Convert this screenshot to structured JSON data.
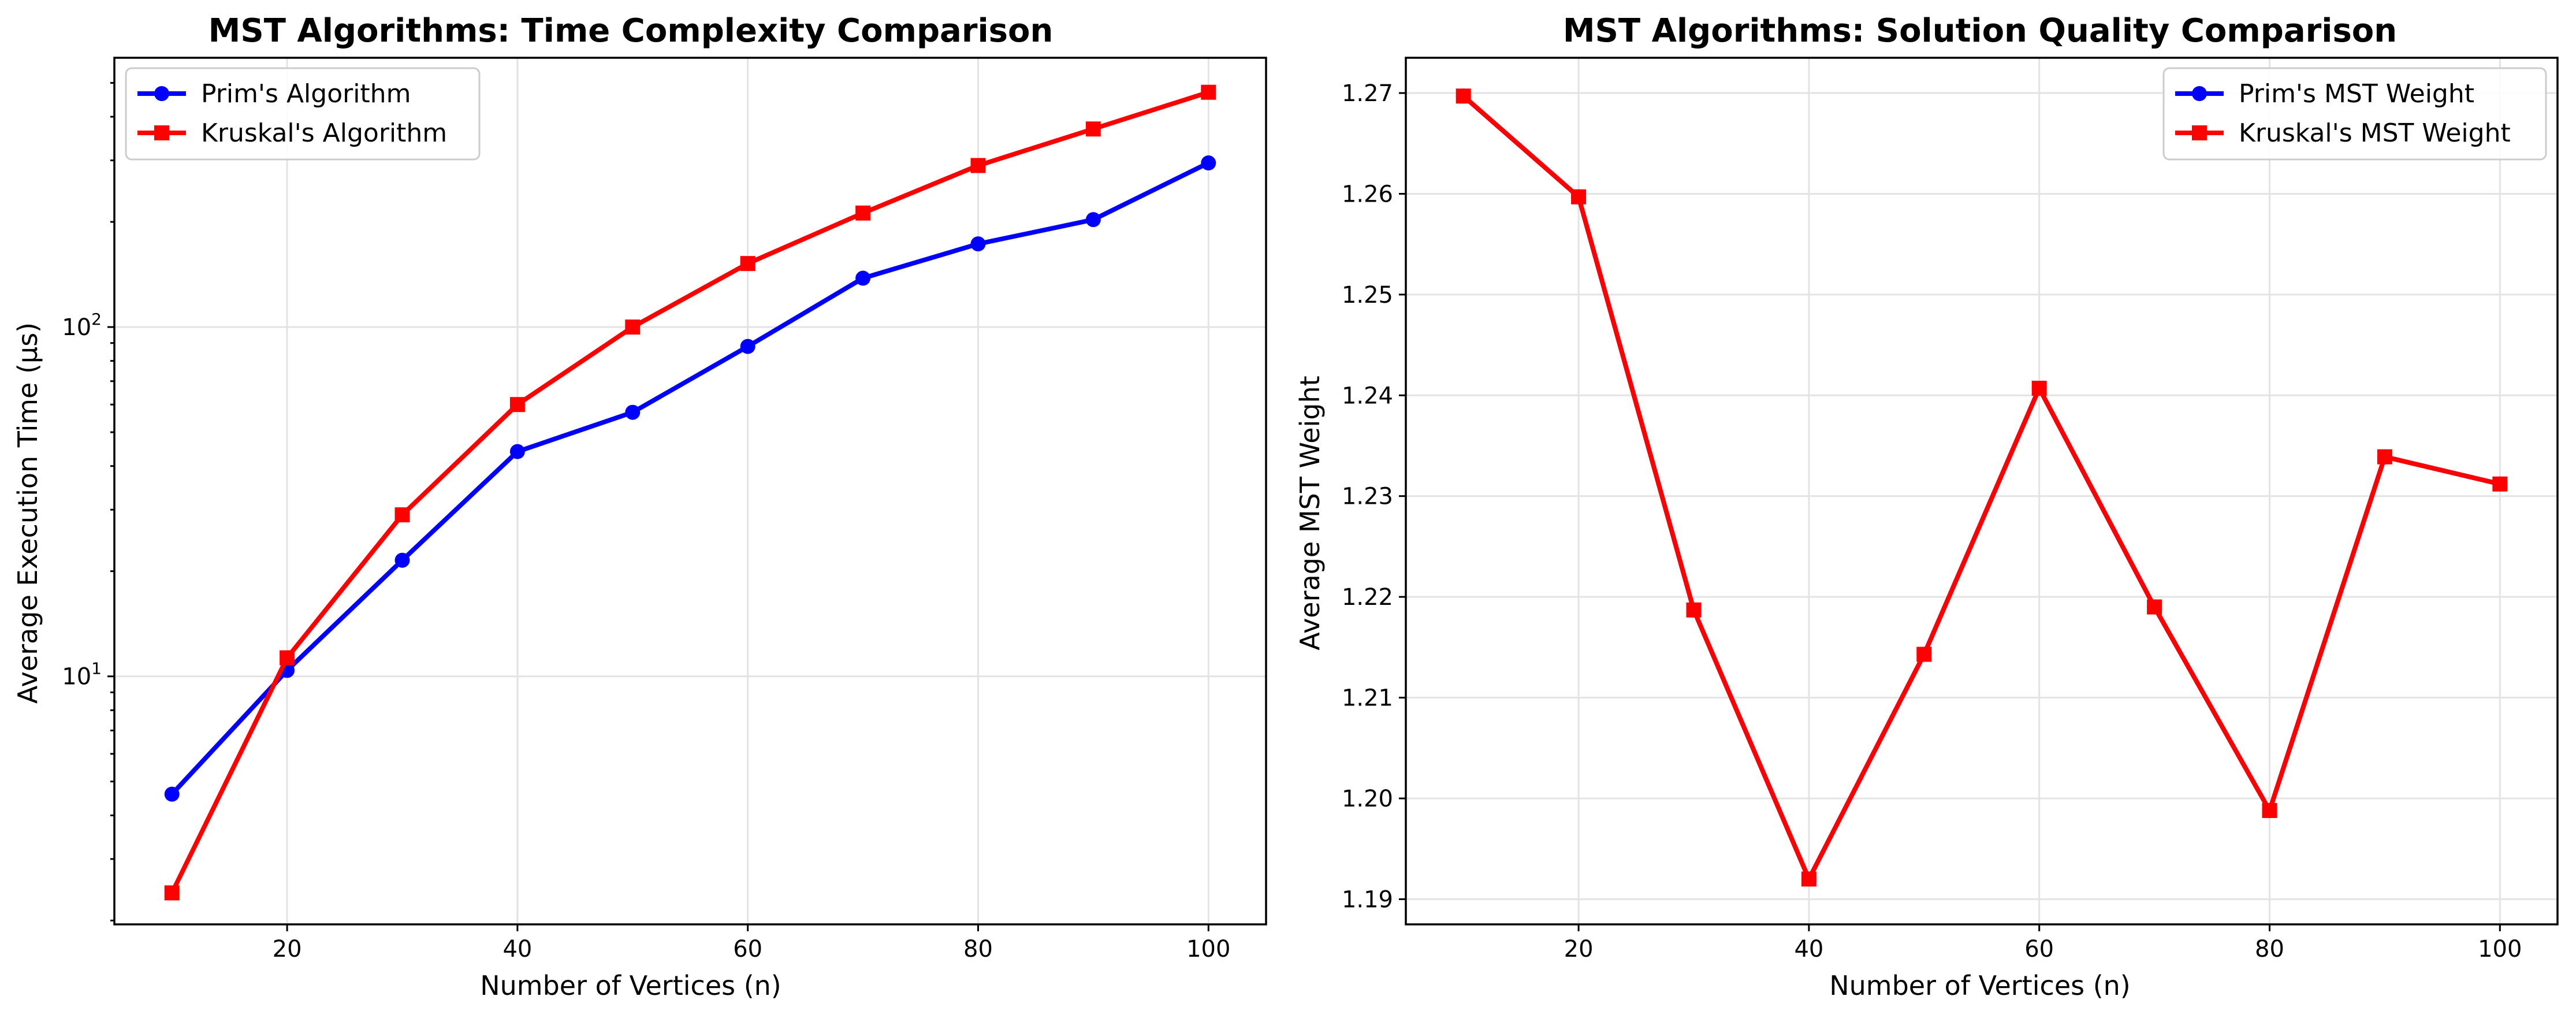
{
  "chart_data": [
    {
      "type": "line",
      "title": "MST Algorithms: Time Complexity Comparison",
      "xlabel": "Number of Vertices (n)",
      "ylabel": "Average Execution Time (μs)",
      "yscale": "log",
      "xlim": [
        5,
        105
      ],
      "ylim": [
        1.95,
        590
      ],
      "xticks": [
        20,
        40,
        60,
        80,
        100
      ],
      "yticks": [
        {
          "value": 10,
          "base": "10",
          "exp": "1"
        },
        {
          "value": 100,
          "base": "10",
          "exp": "2"
        }
      ],
      "grid": true,
      "legend_position": "upper left",
      "x": [
        10,
        20,
        30,
        40,
        50,
        60,
        70,
        80,
        90,
        100
      ],
      "series": [
        {
          "name": "Prim's Algorithm",
          "color": "#0000ff",
          "marker": "circle",
          "values": [
            4.6,
            10.4,
            21.5,
            44,
            57,
            88,
            138,
            173,
            203,
            295
          ]
        },
        {
          "name": "Kruskal's Algorithm",
          "color": "#ff0000",
          "marker": "square",
          "values": [
            2.4,
            11.3,
            29,
            60,
            100,
            152,
            212,
            290,
            369,
            470
          ]
        }
      ]
    },
    {
      "type": "line",
      "title": "MST Algorithms: Solution Quality Comparison",
      "xlabel": "Number of Vertices (n)",
      "ylabel": "Average MST Weight",
      "yscale": "linear",
      "xlim": [
        5,
        105
      ],
      "ylim": [
        1.1875,
        1.2735
      ],
      "xticks": [
        20,
        40,
        60,
        80,
        100
      ],
      "yticks": [
        {
          "value": 1.19,
          "label": "1.19"
        },
        {
          "value": 1.2,
          "label": "1.20"
        },
        {
          "value": 1.21,
          "label": "1.21"
        },
        {
          "value": 1.22,
          "label": "1.22"
        },
        {
          "value": 1.23,
          "label": "1.23"
        },
        {
          "value": 1.24,
          "label": "1.24"
        },
        {
          "value": 1.25,
          "label": "1.25"
        },
        {
          "value": 1.26,
          "label": "1.26"
        },
        {
          "value": 1.27,
          "label": "1.27"
        }
      ],
      "grid": true,
      "legend_position": "upper right",
      "x": [
        10,
        20,
        30,
        40,
        50,
        60,
        70,
        80,
        90,
        100
      ],
      "series": [
        {
          "name": "Prim's MST Weight",
          "color": "#0000ff",
          "marker": "circle",
          "values": [
            1.2697,
            1.2597,
            1.2187,
            1.192,
            1.2143,
            1.2407,
            1.219,
            1.1988,
            1.2339,
            1.2312
          ]
        },
        {
          "name": "Kruskal's MST Weight",
          "color": "#ff0000",
          "marker": "square",
          "values": [
            1.2697,
            1.2597,
            1.2187,
            1.192,
            1.2143,
            1.2407,
            1.219,
            1.1988,
            1.2339,
            1.2312
          ]
        }
      ]
    }
  ]
}
